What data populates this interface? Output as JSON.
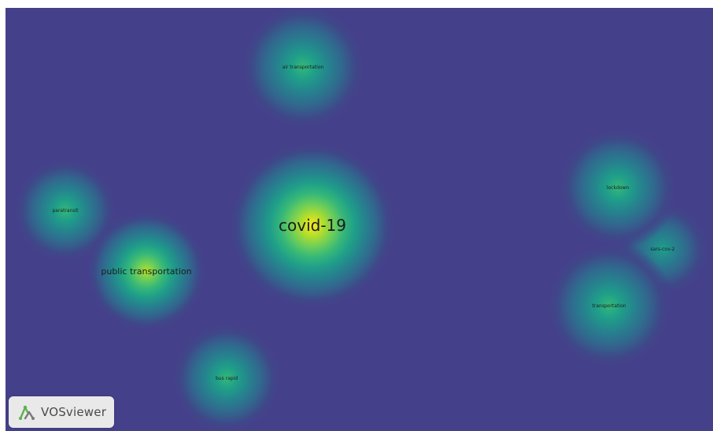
{
  "colors": {
    "background": "#45408a",
    "border": "#ffffff",
    "ramp": [
      "#fde725",
      "#b5de2b",
      "#6ece58",
      "#35b779",
      "#1f9e89",
      "#26828e",
      "#31688e",
      "#3e4989",
      "#45408a"
    ],
    "logo_green": "#5bb44a",
    "logo_gray": "#7a7a7a"
  },
  "nodes": [
    {
      "id": "covid-19",
      "label": "covid-19",
      "density": 1.0
    },
    {
      "id": "public-transportation",
      "label": "public transportation",
      "density": 0.8
    },
    {
      "id": "air-transportation",
      "label": "air transportation",
      "density": 0.5
    },
    {
      "id": "paratransit",
      "label": "paratransit",
      "density": 0.45
    },
    {
      "id": "bus-rapid",
      "label": "bus rapid",
      "density": 0.45
    },
    {
      "id": "lockdown",
      "label": "lockdown",
      "density": 0.45
    },
    {
      "id": "sars-cov-2",
      "label": "sars-cov-2",
      "density": 0.4
    },
    {
      "id": "transportation",
      "label": "transportation",
      "density": 0.45
    }
  ],
  "logo": {
    "icon": "vosviewer-logo-icon",
    "text": "VOSviewer"
  }
}
